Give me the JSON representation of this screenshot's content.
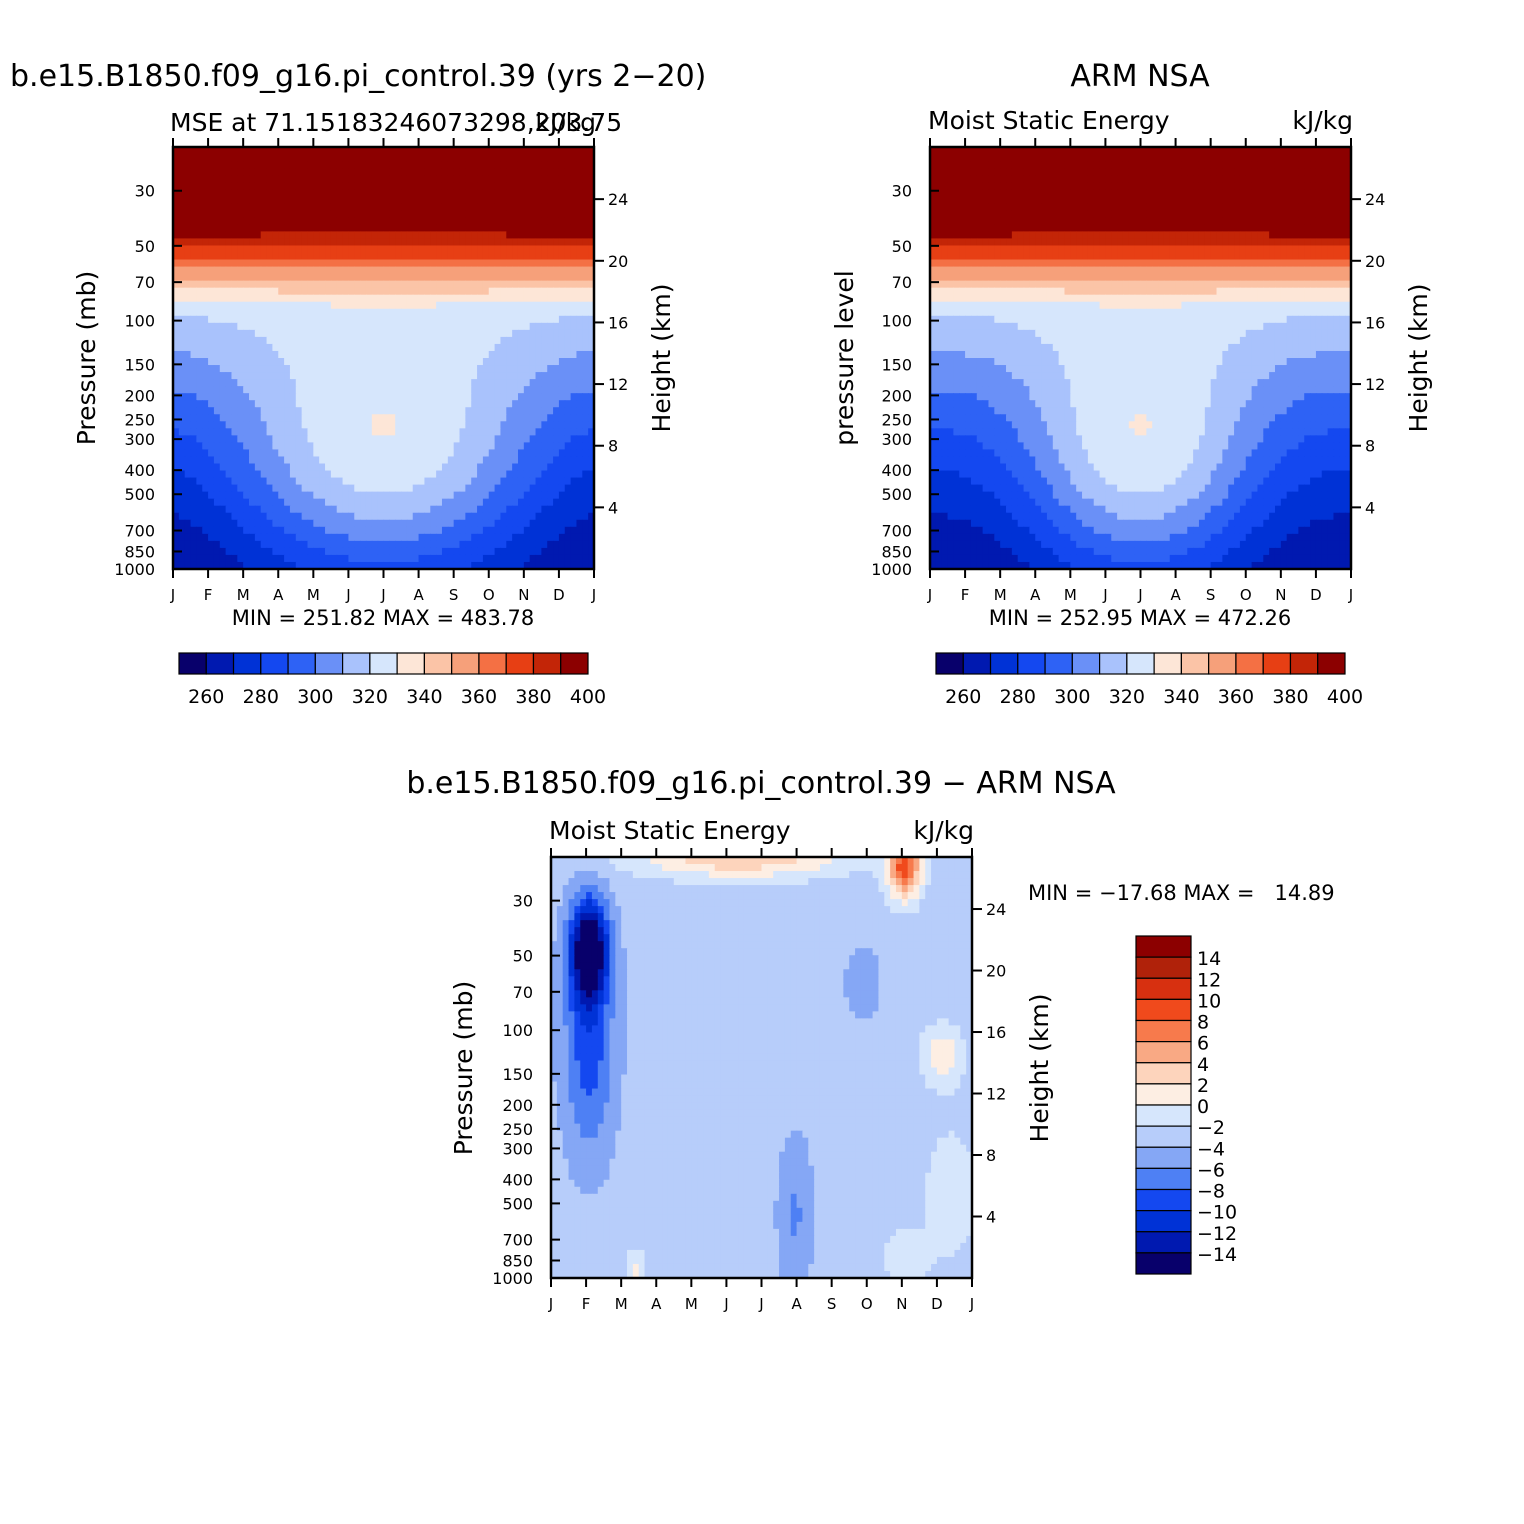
{
  "page": {
    "left_title": "b.e15.B1850.f09_g16.pi_control.39 (yrs 2−20)",
    "right_title": "ARM NSA",
    "bottom_title": "b.e15.B1850.f09_g16.pi_control.39 − ARM NSA"
  },
  "chart_data": [
    {
      "type": "heatmap",
      "id": "model",
      "title": "b.e15.B1850.f09_g16.pi_control.39 (yrs 2−20)",
      "subtitle_left": "MSE at 71.15183246073298,203.75",
      "subtitle_right": "kJ/kg",
      "ylabel": "Pressure (mb)",
      "ylabel_right": "Height (km)",
      "x_ticks": [
        "J",
        "F",
        "M",
        "A",
        "M",
        "J",
        "J",
        "A",
        "S",
        "O",
        "N",
        "D",
        "J"
      ],
      "y_ticks": [
        30,
        50,
        70,
        100,
        150,
        200,
        250,
        300,
        400,
        500,
        700,
        850,
        1000
      ],
      "y_log": true,
      "ylim": [
        20,
        1000
      ],
      "height_ticks": [
        4,
        8,
        12,
        16,
        20,
        24
      ],
      "stats": "MIN = 251.82 MAX = 483.78",
      "colorbar_labels": [
        260,
        280,
        300,
        320,
        340,
        360,
        380,
        400
      ],
      "levels": [
        255,
        260,
        265,
        270,
        275,
        280,
        285,
        290,
        295,
        300,
        305,
        310,
        315,
        320,
        325,
        330,
        335,
        340,
        345,
        350,
        355,
        360,
        365,
        370,
        375,
        380,
        385,
        390,
        395,
        400,
        405,
        410,
        415,
        420,
        425,
        430,
        435,
        440,
        445,
        450,
        455,
        460,
        465,
        470,
        475,
        480
      ],
      "min": 251.82,
      "max": 483.78
    },
    {
      "type": "heatmap",
      "id": "obs",
      "title": "ARM NSA",
      "subtitle_left": "Moist Static Energy",
      "subtitle_right": "kJ/kg",
      "ylabel": "pressure level",
      "ylabel_right": "Height (km)",
      "x_ticks": [
        "J",
        "F",
        "M",
        "A",
        "M",
        "J",
        "J",
        "A",
        "S",
        "O",
        "N",
        "D",
        "J"
      ],
      "y_ticks": [
        30,
        50,
        70,
        100,
        150,
        200,
        250,
        300,
        400,
        500,
        700,
        850,
        1000
      ],
      "y_log": true,
      "ylim": [
        20,
        1000
      ],
      "height_ticks": [
        4,
        8,
        12,
        16,
        20,
        24
      ],
      "stats": "MIN = 252.95 MAX = 472.26",
      "colorbar_labels": [
        260,
        280,
        300,
        320,
        340,
        360,
        380,
        400
      ],
      "min": 252.95,
      "max": 472.26
    },
    {
      "type": "heatmap",
      "id": "diff",
      "title": "b.e15.B1850.f09_g16.pi_control.39 − ARM NSA",
      "subtitle_left": "Moist Static Energy",
      "subtitle_right": "kJ/kg",
      "ylabel": "Pressure (mb)",
      "ylabel_right": "Height (km)",
      "x_ticks": [
        "J",
        "F",
        "M",
        "A",
        "M",
        "J",
        "J",
        "A",
        "S",
        "O",
        "N",
        "D",
        "J"
      ],
      "y_ticks": [
        30,
        50,
        70,
        100,
        150,
        200,
        250,
        300,
        400,
        500,
        700,
        850,
        1000
      ],
      "y_log": true,
      "ylim": [
        20,
        1000
      ],
      "height_ticks": [
        4,
        8,
        12,
        16,
        20,
        24
      ],
      "stats": "MIN = −17.68 MAX =   14.89",
      "colorbar_labels": [
        "14",
        "12",
        "10",
        "8",
        "6",
        "4",
        "2",
        "0",
        "−2",
        "−4",
        "−6",
        "−8",
        "−10",
        "−12",
        "−14"
      ],
      "min": -17.68,
      "max": 14.89
    }
  ],
  "colors": {
    "mse_palette": [
      "#08006b",
      "#0019b0",
      "#0032d6",
      "#1448f0",
      "#2e62f5",
      "#6a90f7",
      "#a9c2fc",
      "#d6e6fc",
      "#fde6d7",
      "#fbc4a7",
      "#f6a07a",
      "#f47044",
      "#e73f14",
      "#c32507",
      "#8c0000"
    ],
    "diff_palette": [
      "#8c0000",
      "#b0220a",
      "#d73010",
      "#f04a1c",
      "#f77a4c",
      "#f9a984",
      "#fdd4bc",
      "#fdeee3",
      "#d6e6fc",
      "#b7cdfa",
      "#85a7f5",
      "#4e80f4",
      "#1448f0",
      "#0032d6",
      "#0019b0",
      "#08006b"
    ],
    "background": "#ffffff"
  }
}
